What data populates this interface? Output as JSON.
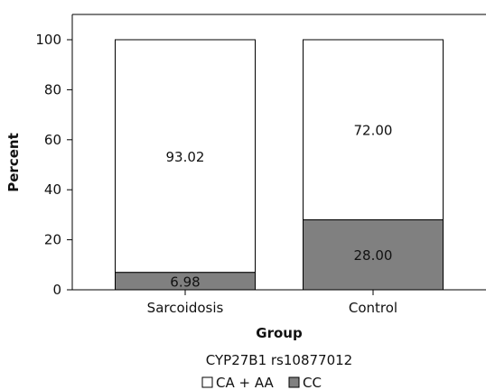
{
  "chart_data": {
    "type": "bar",
    "stacked": true,
    "categories": [
      "Sarcoidosis",
      "Control"
    ],
    "series": [
      {
        "name": "CC",
        "values": [
          6.98,
          28.0
        ],
        "labels": [
          "6.98",
          "28.00"
        ],
        "color": "#808080"
      },
      {
        "name": "CA + AA",
        "values": [
          93.02,
          72.0
        ],
        "labels": [
          "93.02",
          "72.00"
        ],
        "color": "#ffffff"
      }
    ],
    "xlabel": "Group",
    "ylabel": "Percent",
    "ylim": [
      0,
      100
    ],
    "yticks": [
      0,
      20,
      40,
      60,
      80,
      100
    ],
    "caption": "CYP27B1 rs10877012",
    "legend_position": "bottom",
    "grid": false
  }
}
